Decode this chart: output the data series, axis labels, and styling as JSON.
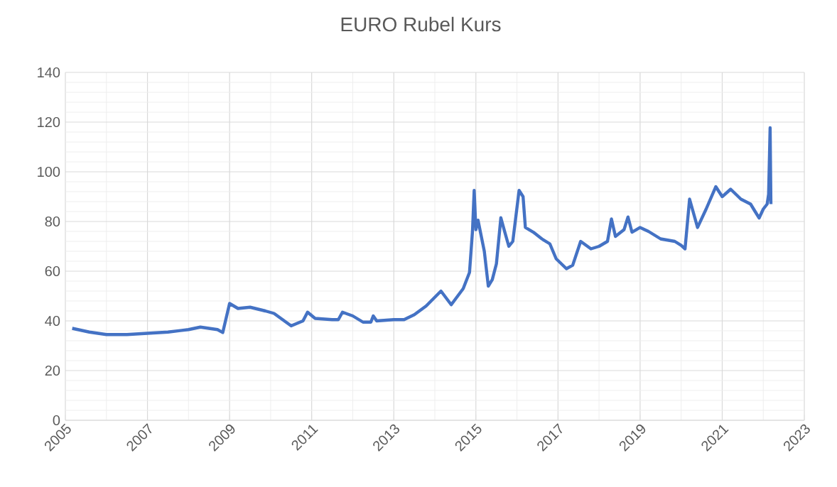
{
  "chart_data": {
    "type": "line",
    "title": "EURO Rubel Kurs",
    "x": [
      "2005-03-01",
      "2005-08-01",
      "2006-01-01",
      "2006-07-01",
      "2007-01-01",
      "2007-07-01",
      "2008-01-01",
      "2008-04-15",
      "2008-09-15",
      "2008-11-01",
      "2009-01-01",
      "2009-03-15",
      "2009-07-01",
      "2009-11-15",
      "2010-02-01",
      "2010-07-01",
      "2010-10-15",
      "2010-11-25",
      "2011-02-01",
      "2011-07-01",
      "2011-08-25",
      "2011-10-01",
      "2012-01-01",
      "2012-04-01",
      "2012-06-10",
      "2012-07-01",
      "2012-08-01",
      "2013-01-01",
      "2013-04-01",
      "2013-07-01",
      "2013-10-15",
      "2014-02-25",
      "2014-05-25",
      "2014-09-10",
      "2014-11-05",
      "2014-12-01",
      "2014-12-16",
      "2015-01-01",
      "2015-01-20",
      "2015-03-15",
      "2015-04-20",
      "2015-05-25",
      "2015-07-01",
      "2015-08-10",
      "2015-09-15",
      "2015-10-20",
      "2015-11-25",
      "2016-01-20",
      "2016-02-25",
      "2016-03-15",
      "2016-05-25",
      "2016-08-10",
      "2016-10-20",
      "2016-12-15",
      "2017-03-15",
      "2017-05-10",
      "2017-07-20",
      "2017-10-20",
      "2018-01-01",
      "2018-03-15",
      "2018-04-20",
      "2018-05-25",
      "2018-08-10",
      "2018-09-15",
      "2018-10-20",
      "2019-01-01",
      "2019-03-15",
      "2019-07-01",
      "2019-11-05",
      "2020-01-01",
      "2020-02-05",
      "2020-03-15",
      "2020-05-25",
      "2020-08-10",
      "2020-11-05",
      "2021-01-01",
      "2021-03-15",
      "2021-06-15",
      "2021-09-10",
      "2021-10-20",
      "2021-11-25",
      "2022-01-01",
      "2022-02-05",
      "2022-02-18",
      "2022-03-01",
      "2022-03-08"
    ],
    "values": [
      37,
      35.5,
      34.5,
      34.5,
      35,
      35.5,
      36.5,
      37.5,
      36.5,
      35.3,
      47,
      45,
      45.5,
      44,
      43,
      38,
      40,
      43.5,
      41,
      40.5,
      40.5,
      43.5,
      42,
      39.5,
      39.5,
      42,
      40,
      40.5,
      40.5,
      42.5,
      46,
      52,
      46.5,
      53,
      59.5,
      76,
      92.5,
      76.7,
      80.5,
      68,
      54,
      56.6,
      63,
      81.5,
      75.7,
      70,
      72,
      92.5,
      90,
      77.6,
      75.7,
      73,
      71,
      65,
      61,
      62.4,
      72,
      69,
      70,
      72,
      81,
      74,
      76.7,
      81.8,
      75.7,
      77.6,
      76,
      73,
      72,
      70.4,
      69,
      89,
      77.6,
      85,
      94,
      90,
      93,
      89,
      87,
      84,
      81.4,
      85,
      87,
      91,
      117.7,
      87
    ],
    "color": "#4472c4",
    "xlim": [
      "2005",
      "2023"
    ],
    "xticks": [
      "2005",
      "2007",
      "2009",
      "2011",
      "2013",
      "2015",
      "2017",
      "2019",
      "2021",
      "2023"
    ],
    "ylim": [
      0,
      140
    ],
    "yticks": [
      0,
      20,
      40,
      60,
      80,
      100,
      120,
      140
    ],
    "grid": true
  }
}
